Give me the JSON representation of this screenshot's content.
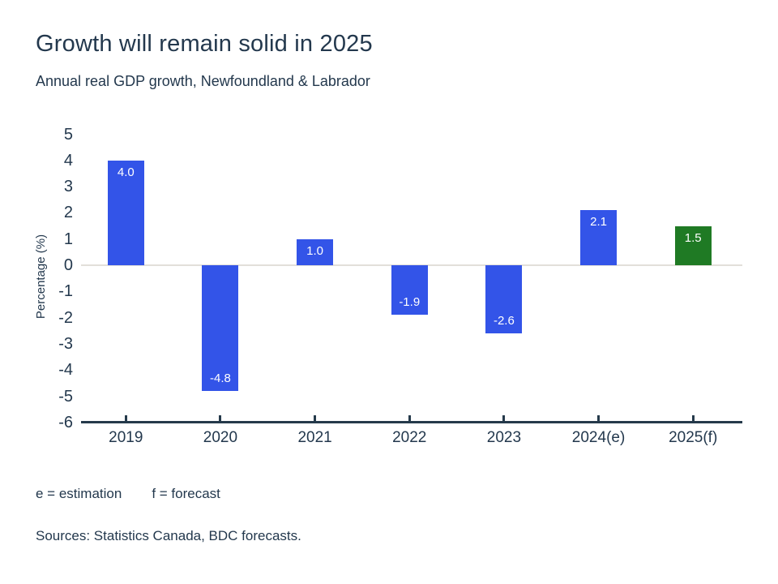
{
  "header": {
    "title": "Growth will remain solid in 2025",
    "subtitle": "Annual real GDP growth, Newfoundland & Labrador"
  },
  "chart_data": {
    "type": "bar",
    "title": "Growth will remain solid in 2025",
    "subtitle": "Annual real GDP growth, Newfoundland & Labrador",
    "categories": [
      "2019",
      "2020",
      "2021",
      "2022",
      "2023",
      "2024(e)",
      "2025(f)"
    ],
    "values": [
      4.0,
      -4.8,
      1.0,
      -1.9,
      -2.6,
      2.1,
      1.5
    ],
    "bar_labels": [
      "4.0",
      "-4.8",
      "1.0",
      "-1.9",
      "-2.6",
      "2.1",
      "1.5"
    ],
    "bar_colors": [
      "#3354e8",
      "#3354e8",
      "#3354e8",
      "#3354e8",
      "#3354e8",
      "#3354e8",
      "#1f7a24"
    ],
    "xlabel": "",
    "ylabel": "Percentage (%)",
    "yticks": [
      5,
      4,
      3,
      2,
      1,
      0,
      -1,
      -2,
      -3,
      -4,
      -5,
      -6
    ],
    "ylim": [
      -6,
      5
    ],
    "grid": "zero-line-only",
    "legend": "none",
    "colors": {
      "bar_default": "#3354e8",
      "bar_forecast": "#1f7a24",
      "axis": "#253a4b",
      "text": "#23384d",
      "zero_line": "#e2dfda",
      "bar_value_text": "#ffffff",
      "background": "#ffffff"
    }
  },
  "footnotes": {
    "estimation": "e = estimation",
    "forecast": "f = forecast"
  },
  "sources": "Sources: Statistics Canada, BDC forecasts."
}
